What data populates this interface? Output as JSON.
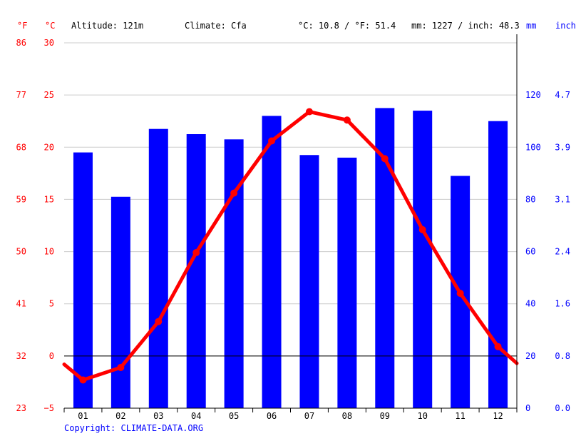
{
  "header": {
    "unit_f": "°F",
    "unit_c": "°C",
    "altitude": "Altitude: 121m",
    "climate": "Climate: Cfa",
    "temp_summary": "°C: 10.8 / °F: 51.4",
    "precip_summary": "mm: 1227 / inch: 48.3",
    "unit_mm": "mm",
    "unit_inch": "inch"
  },
  "copyright": "Copyright: CLIMATE-DATA.ORG",
  "colors": {
    "temperature": "#ff0000",
    "precipitation": "#0000ff",
    "grid": "#cccccc",
    "zero_line": "#000000"
  },
  "chart_data": {
    "type": "bar",
    "categories": [
      "01",
      "02",
      "03",
      "04",
      "05",
      "06",
      "07",
      "08",
      "09",
      "10",
      "11",
      "12"
    ],
    "y_left_c": {
      "ylim": [
        -5,
        30
      ],
      "ticks": [
        "30",
        "25",
        "20",
        "15",
        "10",
        "5",
        "0",
        "−5"
      ]
    },
    "y_left_f": {
      "ticks": [
        "86",
        "77",
        "68",
        "59",
        "50",
        "41",
        "32",
        "23"
      ]
    },
    "y_right_mm": {
      "ylim": [
        0,
        140
      ],
      "ticks": [
        "120",
        "100",
        "80",
        "60",
        "40",
        "20",
        "0"
      ]
    },
    "y_right_inch": {
      "ticks": [
        "4.7",
        "3.9",
        "3.1",
        "2.4",
        "1.6",
        "0.8",
        "0.0"
      ]
    },
    "grid": true,
    "series": [
      {
        "type": "bar",
        "values": [
          98,
          81,
          107,
          105,
          103,
          112,
          97,
          96,
          115,
          114,
          89,
          110
        ]
      },
      {
        "type": "line",
        "values": [
          -2.3,
          -1.1,
          3.3,
          9.9,
          15.6,
          20.6,
          23.4,
          22.6,
          18.9,
          12.1,
          6.0,
          0.9
        ],
        "start": -0.8,
        "end": -0.7
      }
    ]
  }
}
